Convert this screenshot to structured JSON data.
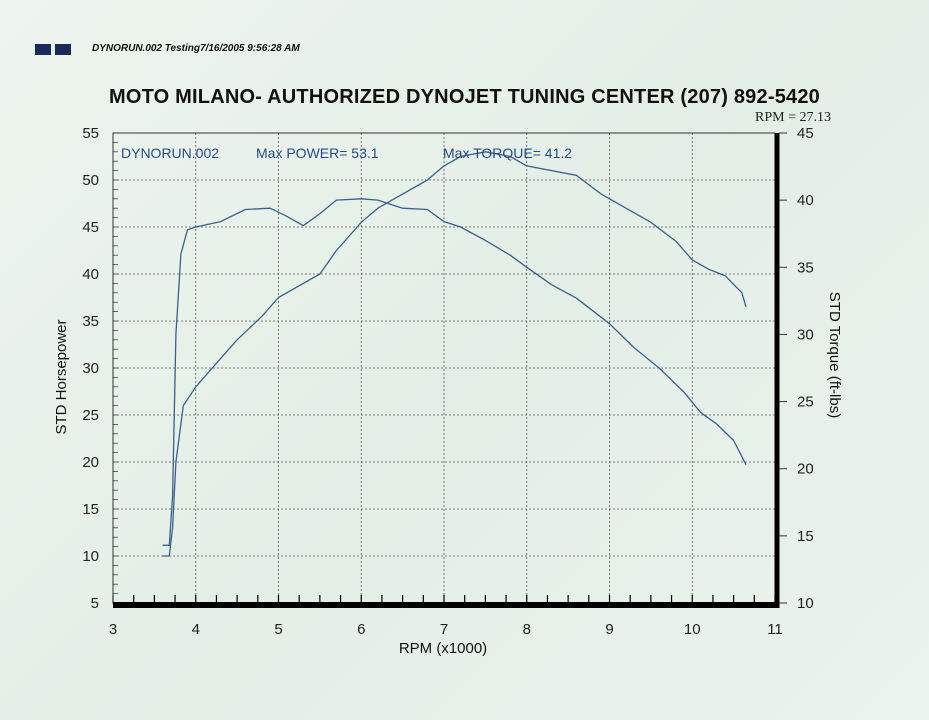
{
  "header": {
    "run_label": "DYNORUN.002  Testing7/16/2005 9:56:28 AM",
    "title": "MOTO MILANO- AUTHORIZED DYNOJET TUNING CENTER (207) 892-5420",
    "rpm_readout": "RPM = 27.13"
  },
  "chart_data": {
    "type": "line",
    "annotation": {
      "run": "DYNORUN.002",
      "max_power": "Max POWER= 53.1",
      "max_torque": "Max TORQUE= 41.2"
    },
    "xlabel": "RPM (x1000)",
    "ylabel": "STD Horsepower",
    "y2label": "STD Torque (ft-lbs)",
    "xlim": [
      3,
      11
    ],
    "ylim": [
      5,
      55
    ],
    "y2lim": [
      10,
      45
    ],
    "xticks": [
      3,
      4,
      5,
      6,
      7,
      8,
      9,
      10,
      11
    ],
    "yticks": [
      5,
      10,
      15,
      20,
      25,
      30,
      35,
      40,
      45,
      50,
      55
    ],
    "y2ticks": [
      10,
      15,
      20,
      25,
      30,
      35,
      40,
      45
    ],
    "grid": true,
    "colors": {
      "line": "#3d5f8e",
      "grid": "#555555",
      "axis": "#000000"
    },
    "series": [
      {
        "name": "STD Horsepower",
        "axis": "left",
        "x": [
          3.6,
          3.68,
          3.72,
          3.76,
          3.85,
          4.0,
          4.2,
          4.5,
          4.8,
          5.0,
          5.2,
          5.5,
          5.7,
          6.0,
          6.2,
          6.5,
          6.8,
          7.0,
          7.2,
          7.5,
          7.8,
          8.0,
          8.3,
          8.6,
          8.9,
          9.2,
          9.5,
          9.8,
          10.0,
          10.2,
          10.4,
          10.6,
          10.65
        ],
        "y": [
          10,
          10,
          13,
          20,
          26,
          28,
          30,
          33,
          35.5,
          37.5,
          38.5,
          40,
          42.5,
          45.5,
          47,
          48.5,
          50,
          51.5,
          52.5,
          53,
          52.5,
          51.5,
          51,
          50.5,
          48.5,
          47,
          45.5,
          43.5,
          41.5,
          40.5,
          39.8,
          38,
          36.5
        ]
      },
      {
        "name": "STD Torque (ft-lbs)",
        "axis": "right",
        "x": [
          3.6,
          3.68,
          3.72,
          3.76,
          3.82,
          3.9,
          4.0,
          4.3,
          4.6,
          4.9,
          5.1,
          5.3,
          5.5,
          5.7,
          6.0,
          6.2,
          6.5,
          6.8,
          7.0,
          7.2,
          7.5,
          7.8,
          8.0,
          8.3,
          8.6,
          9.0,
          9.3,
          9.6,
          9.9,
          10.1,
          10.3,
          10.5,
          10.65
        ],
        "y": [
          14.3,
          14.3,
          18,
          30,
          36,
          37.8,
          38,
          38.4,
          39.3,
          39.4,
          38.8,
          38.1,
          39,
          40,
          40.1,
          40,
          39.4,
          39.3,
          38.4,
          38,
          37,
          35.9,
          35,
          33.7,
          32.7,
          30.8,
          29,
          27.5,
          25.7,
          24.2,
          23.3,
          22.1,
          20.3
        ]
      }
    ]
  }
}
